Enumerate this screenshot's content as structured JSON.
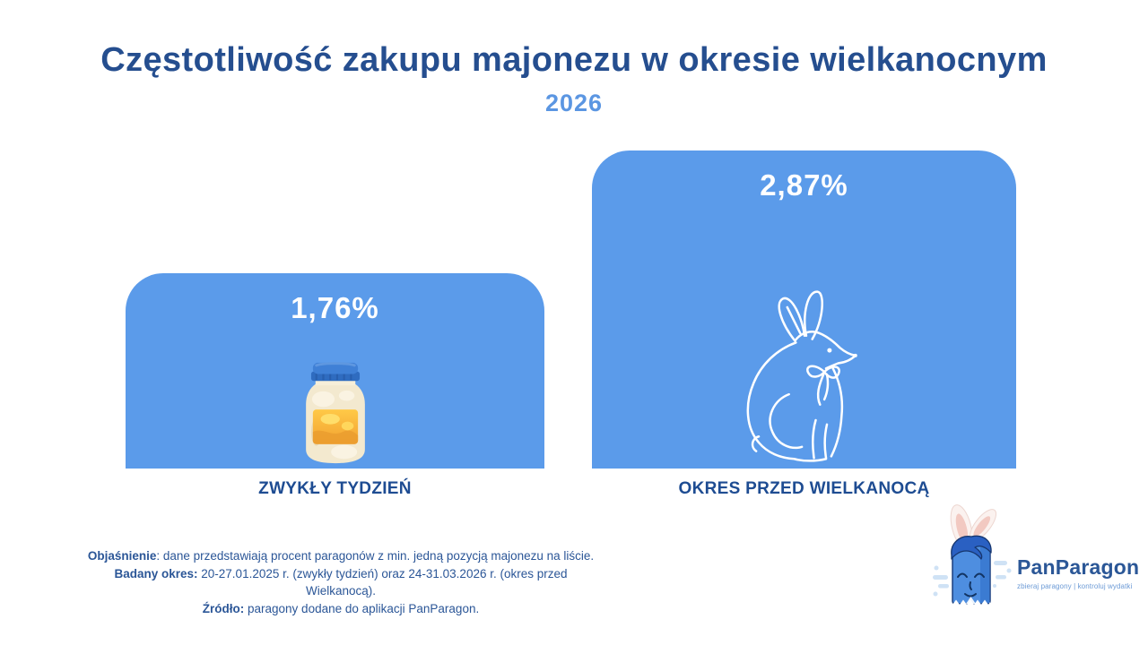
{
  "title": "Częstotliwość zakupu majonezu w okresie wielkanocnym",
  "year": "2026",
  "colors": {
    "title_navy": "#254E8F",
    "year_blue": "#5B96E2",
    "bar_blue": "#5B9BEA",
    "value_white": "#FFFFFF",
    "category_navy": "#1E4C92",
    "footnote_blue": "#2B5697",
    "logo_navy": "#2B5797",
    "tagline_blue": "#6D9BD6"
  },
  "chart_data": {
    "type": "bar",
    "title": "Częstotliwość zakupu majonezu w okresie wielkanocnym",
    "subtitle": "2026",
    "categories": [
      "ZWYKŁY TYDZIEŃ",
      "OKRES PRZED WIELKANOCĄ"
    ],
    "values": [
      1.76,
      2.87
    ],
    "value_labels": [
      "1,76%",
      "2,87%"
    ],
    "bar_icons": [
      "mayonnaise-jar-icon",
      "easter-bunny-icon"
    ],
    "bar_color": "#5B9BEA",
    "ylim": [
      0,
      2.87
    ],
    "grid": false,
    "legend": false,
    "value_label_position": "inside-top",
    "unit": "%"
  },
  "footnotes": [
    {
      "label": "Objaśnienie",
      "text": ": dane przedstawiają procent paragonów z min. jedną pozycją majonezu na liście."
    },
    {
      "label": "Badany okres:",
      "text": " 20-27.01.2025 r. (zwykły tydzień) oraz 24-31.03.2026 r. (okres przed Wielkanocą)."
    },
    {
      "label": "Źródło:",
      "text": " paragony dodane do aplikacji PanParagon."
    }
  ],
  "logo": {
    "name": "PanParagon",
    "tagline": "zbieraj paragony | kontroluj wydatki",
    "mascot": "panparagon-receipt-character-with-bunny-ears"
  }
}
